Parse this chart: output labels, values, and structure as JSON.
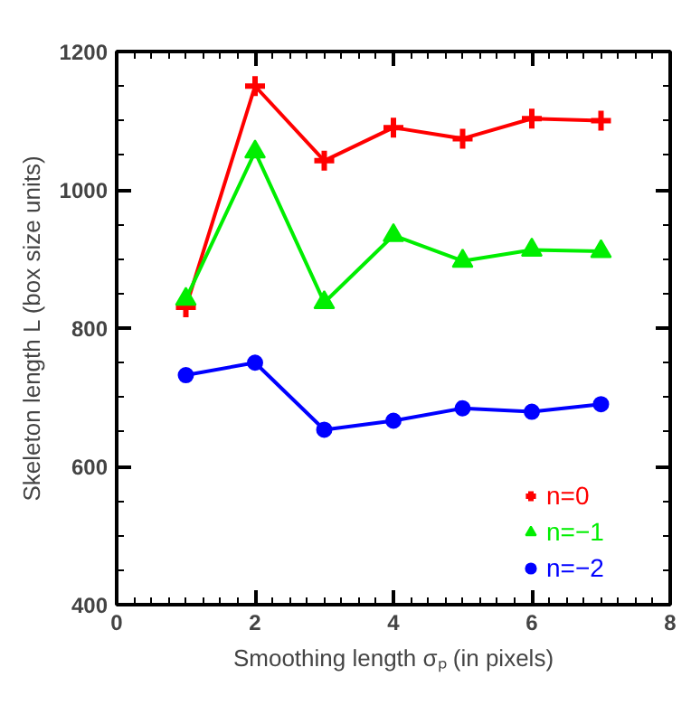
{
  "chart_data": {
    "type": "line",
    "xlabel": "Smoothing length σₚ (in pixels)",
    "ylabel": "Skeleton length L (box size units)",
    "x": [
      1,
      2,
      3,
      4,
      5,
      6,
      7
    ],
    "series": [
      {
        "name": "n=0",
        "color": "#ff0000",
        "marker": "cross",
        "values": [
          830,
          1150,
          1042,
          1090,
          1074,
          1103,
          1100
        ]
      },
      {
        "name": "n=−1",
        "color": "#00ee00",
        "marker": "triangle",
        "values": [
          842,
          1055,
          837,
          934,
          897,
          913,
          911
        ]
      },
      {
        "name": "n=−2",
        "color": "#0000ff",
        "marker": "circle",
        "values": [
          732,
          750,
          653,
          666,
          684,
          679,
          690
        ]
      }
    ],
    "xlim": [
      0,
      8
    ],
    "xticks": [
      0,
      2,
      4,
      6,
      8
    ],
    "ylim": [
      400,
      1200
    ],
    "yticks": [
      400,
      600,
      800,
      1000,
      1200
    ],
    "grid": false,
    "legend": "bottom right",
    "line_style": "solid"
  }
}
